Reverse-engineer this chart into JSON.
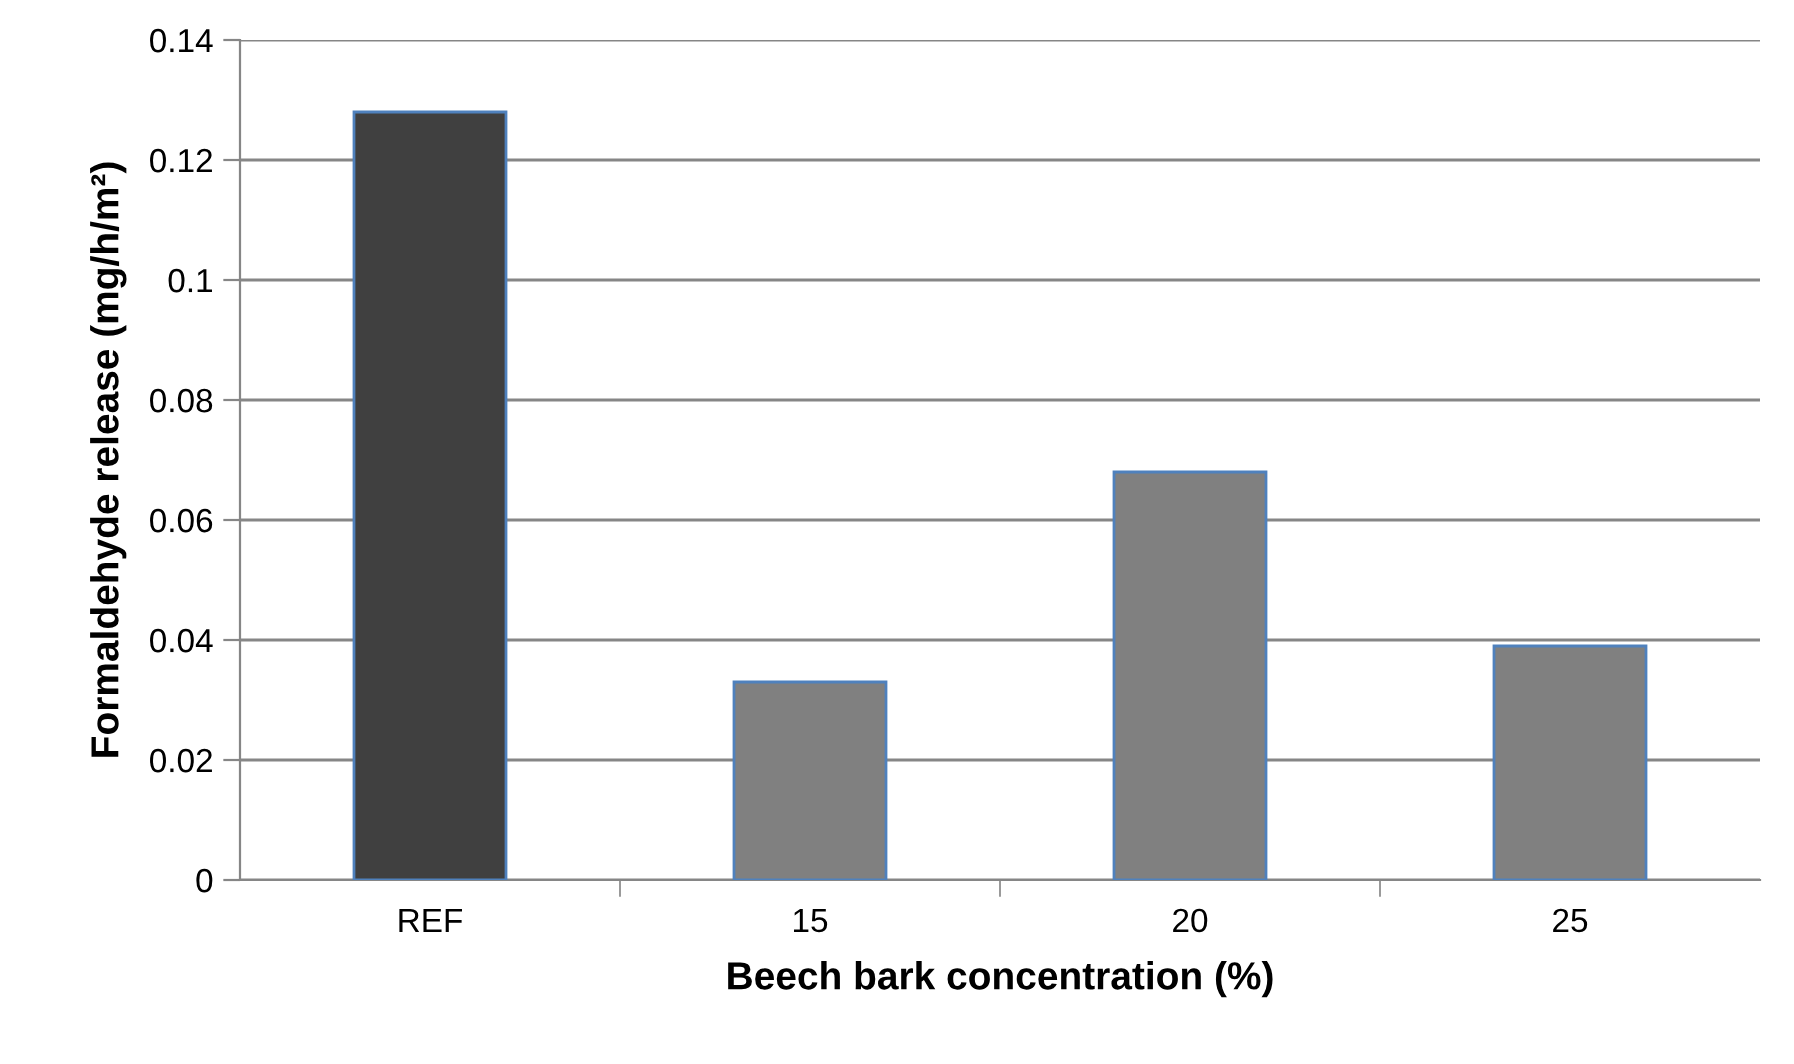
{
  "chart_data": {
    "type": "bar",
    "xlabel": "Beech bark concentration (%)",
    "ylabel": "Formaldehyde release (mg/h/m²)",
    "categories": [
      "REF",
      "15",
      "20",
      "25"
    ],
    "values": [
      0.128,
      0.033,
      0.068,
      0.039
    ],
    "colors": [
      "#404040",
      "#808080",
      "#808080",
      "#808080"
    ],
    "ylim": [
      0,
      0.14
    ],
    "yticks": [
      {
        "value": 0,
        "label": "0"
      },
      0.02,
      0.04,
      0.06,
      0.08,
      {
        "value": 0.1,
        "label": "0.1"
      },
      0.12,
      0.14
    ],
    "grid": "y",
    "legend": false
  }
}
